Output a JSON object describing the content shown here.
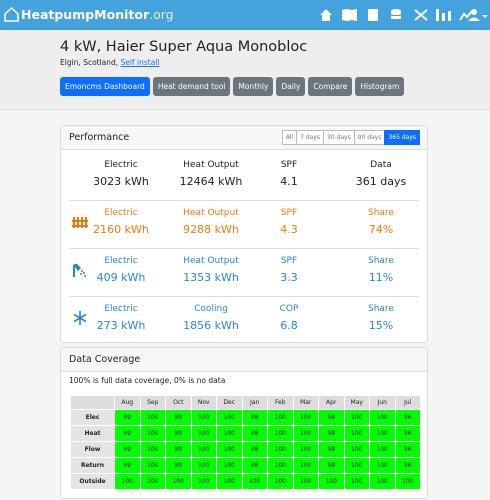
{
  "nav": {
    "brand": "HeatpumpMonitor",
    "brand_suffix": ".org"
  },
  "header": {
    "title": "4 kW, Haier Super Aqua Monobloc",
    "location": "Elgin, Scotland,",
    "install_link": "Self install",
    "buttons": [
      "Emoncms Dashboard",
      "Heat demand tool",
      "Monthly",
      "Daily",
      "Compare",
      "Histogram"
    ]
  },
  "performance": {
    "title": "Performance",
    "periods": [
      "All",
      "7 days",
      "30 days",
      "90 days",
      "365 days"
    ],
    "summary": [
      {
        "label": "Electric",
        "value": "3023 kWh"
      },
      {
        "label": "Heat Output",
        "value": "12464 kWh"
      },
      {
        "label": "SPF",
        "value": "4.1"
      },
      {
        "label": "Data",
        "value": "361 days"
      }
    ],
    "rows": [
      [
        {
          "label": "Electric",
          "value": "2160 kWh"
        },
        {
          "label": "Heat Output",
          "value": "9288 kWh"
        },
        {
          "label": "SPF",
          "value": "4.3"
        },
        {
          "label": "Share",
          "value": "74%"
        }
      ],
      [
        {
          "label": "Electric",
          "value": "409 kWh"
        },
        {
          "label": "Heat Output",
          "value": "1353 kWh"
        },
        {
          "label": "SPF",
          "value": "3.3"
        },
        {
          "label": "Share",
          "value": "11%"
        }
      ],
      [
        {
          "label": "Electric",
          "value": "273 kWh"
        },
        {
          "label": "Cooling",
          "value": "1856 kWh"
        },
        {
          "label": "COP",
          "value": "6.8"
        },
        {
          "label": "Share",
          "value": "15%"
        }
      ]
    ]
  },
  "coverage": {
    "title": "Data Coverage",
    "note": "100% is full data coverage, 0% is no data",
    "months": [
      "Aug",
      "Sep",
      "Oct",
      "Nov",
      "Dec",
      "Jan",
      "Feb",
      "Mar",
      "Apr",
      "May",
      "Jun",
      "Jul"
    ],
    "rows": [
      {
        "name": "Elec",
        "values": [
          99,
          100,
          99,
          100,
          100,
          98,
          100,
          100,
          98,
          100,
          100,
          96
        ]
      },
      {
        "name": "Heat",
        "values": [
          99,
          100,
          99,
          100,
          100,
          98,
          100,
          100,
          98,
          100,
          100,
          96
        ]
      },
      {
        "name": "Flow",
        "values": [
          99,
          100,
          99,
          100,
          100,
          98,
          100,
          100,
          98,
          100,
          100,
          96
        ]
      },
      {
        "name": "Return",
        "values": [
          99,
          100,
          99,
          100,
          100,
          98,
          100,
          100,
          98,
          100,
          100,
          96
        ]
      },
      {
        "name": "Outside",
        "values": [
          100,
          100,
          100,
          100,
          100,
          100,
          100,
          100,
          100,
          100,
          100,
          100
        ]
      }
    ]
  }
}
